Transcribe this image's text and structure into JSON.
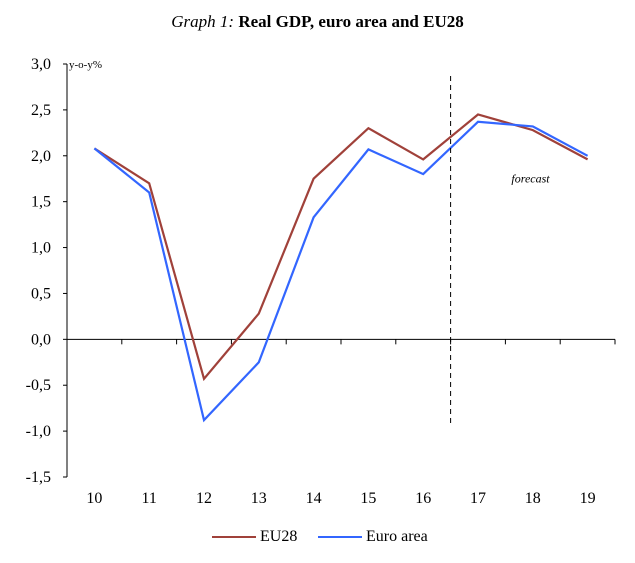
{
  "title": {
    "prefix": "Graph 1:",
    "main": "Real GDP, euro area and EU28"
  },
  "chart_data": {
    "type": "line",
    "title": "Graph 1: Real GDP, euro area and EU28",
    "ylabel": "y-o-y%",
    "xlabel": "",
    "categories": [
      "10",
      "11",
      "12",
      "13",
      "14",
      "15",
      "16",
      "17",
      "18",
      "19"
    ],
    "ylim": [
      -1.5,
      3.0
    ],
    "yticks": [
      "3,0",
      "2,5",
      "2,0",
      "1,5",
      "1,0",
      "0,5",
      "0,0",
      "-0,5",
      "-1,0",
      "-1,5"
    ],
    "series": [
      {
        "name": "EU28",
        "color": "#a0413a",
        "values": [
          2.08,
          1.7,
          -0.43,
          0.28,
          1.75,
          2.3,
          1.96,
          2.45,
          2.28,
          1.96
        ]
      },
      {
        "name": "Euro area",
        "color": "#3366ff",
        "values": [
          2.08,
          1.6,
          -0.88,
          -0.25,
          1.33,
          2.07,
          1.8,
          2.37,
          2.32,
          2.0
        ]
      }
    ],
    "annotations": [
      {
        "text": "forecast",
        "style": "dashed vertical divider between 16 and 17"
      }
    ],
    "grid": false,
    "legend_position": "bottom"
  }
}
